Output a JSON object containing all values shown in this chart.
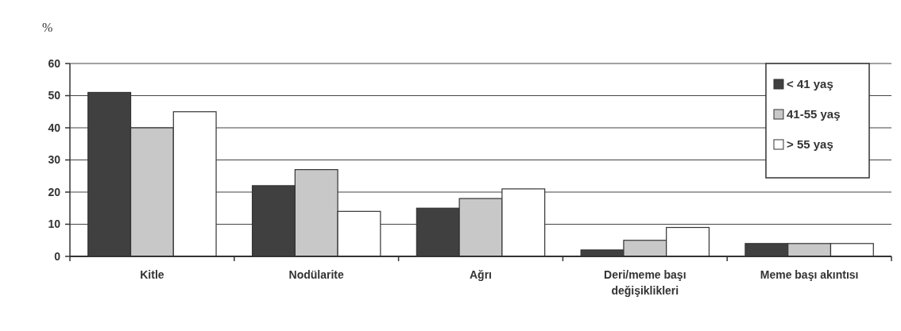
{
  "chart_data": {
    "type": "bar",
    "ylabel": "%",
    "categories": [
      "Kitle",
      "Nodülarite",
      "Ağrı",
      "Deri/meme başı\ndeğişiklikleri",
      "Meme başı akıntısı"
    ],
    "series": [
      {
        "name": "< 41 yaş",
        "color": "#404040",
        "values": [
          51,
          22,
          15,
          2,
          4
        ]
      },
      {
        "name": "41-55 yaş",
        "color": "#c8c8c8",
        "values": [
          40,
          27,
          18,
          5,
          4
        ]
      },
      {
        "name": "> 55 yaş",
        "color": "#ffffff",
        "values": [
          45,
          14,
          21,
          9,
          4
        ]
      }
    ],
    "ylim": [
      0,
      60
    ],
    "yticks": [
      0,
      10,
      20,
      30,
      40,
      50,
      60
    ],
    "grid": "y",
    "legend": "top right"
  }
}
